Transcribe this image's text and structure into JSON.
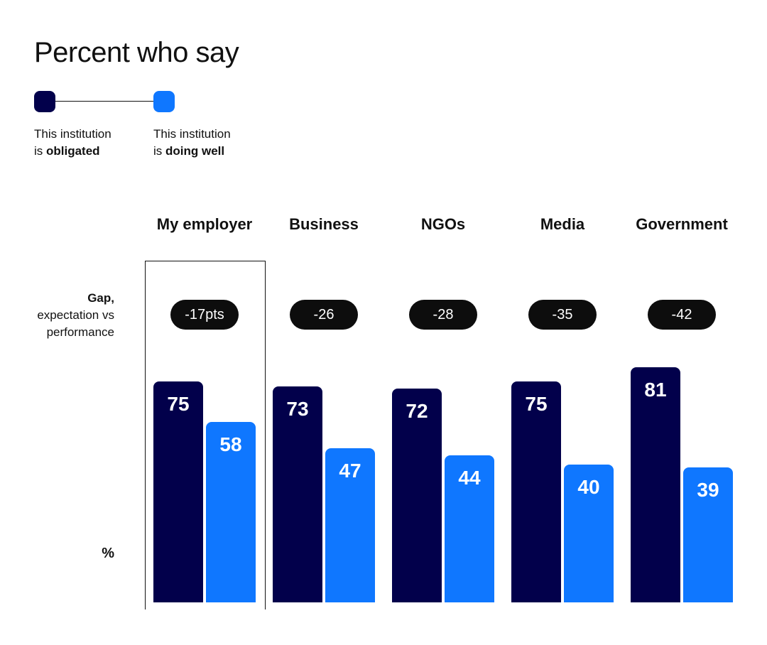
{
  "chart_data": {
    "type": "bar",
    "title": "Percent who say",
    "categories": [
      "My employer",
      "Business",
      "NGOs",
      "Media",
      "Government"
    ],
    "series": [
      {
        "name": "This institution is obligated",
        "values": [
          75,
          73,
          72,
          75,
          81
        ],
        "color": "#02004b"
      },
      {
        "name": "This institution is doing well",
        "values": [
          58,
          47,
          44,
          40,
          39
        ],
        "color": "#0f77ff"
      }
    ],
    "gaps": [
      "-17pts",
      "-26",
      "-28",
      "-35",
      "-42"
    ],
    "gap_label": [
      "Gap,",
      "expectation vs",
      "performance"
    ],
    "ylabel": "%",
    "highlighted_category": "My employer"
  },
  "legend": {
    "obligated": {
      "line1": "This institution",
      "prefix": "is ",
      "bold": "obligated"
    },
    "doing_well": {
      "line1": "This institution",
      "prefix": "is ",
      "bold": "doing well"
    }
  }
}
